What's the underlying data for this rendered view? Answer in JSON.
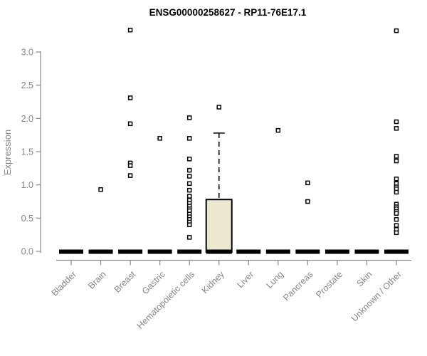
{
  "chart_data": {
    "type": "boxplot",
    "title": "ENSG00000258627 - RP11-76E17.1",
    "ylabel": "Expression",
    "xlabel": "",
    "yticks": [
      0.0,
      0.5,
      1.0,
      1.5,
      2.0,
      2.5,
      3.0
    ],
    "ylim": [
      0,
      3.4
    ],
    "grid": false,
    "legend": "none",
    "marker": "open-square",
    "categories": [
      "Bladder",
      "Brain",
      "Breast",
      "Gastric",
      "Hematopoietic cells",
      "Kidney",
      "Liver",
      "Lung",
      "Pancreas",
      "Prostate",
      "Skin",
      "Unknown / Other"
    ],
    "boxes": [
      {
        "label": "Bladder",
        "q1": 0,
        "median": 0,
        "q3": 0,
        "whisker_low": 0,
        "whisker_high": 0,
        "outliers": []
      },
      {
        "label": "Brain",
        "q1": 0,
        "median": 0,
        "q3": 0,
        "whisker_low": 0,
        "whisker_high": 0,
        "outliers": [
          0.93
        ]
      },
      {
        "label": "Breast",
        "q1": 0,
        "median": 0,
        "q3": 0,
        "whisker_low": 0,
        "whisker_high": 0,
        "outliers": [
          3.33,
          2.31,
          1.92,
          1.33,
          1.29,
          1.14
        ]
      },
      {
        "label": "Gastric",
        "q1": 0,
        "median": 0,
        "q3": 0,
        "whisker_low": 0,
        "whisker_high": 0,
        "outliers": [
          1.7
        ]
      },
      {
        "label": "Hematopoietic cells",
        "q1": 0,
        "median": 0,
        "q3": 0,
        "whisker_low": 0,
        "whisker_high": 0,
        "outliers": [
          2.01,
          1.7,
          1.39,
          1.22,
          1.13,
          1.02,
          0.92,
          0.83,
          0.77,
          0.72,
          0.68,
          0.64,
          0.61,
          0.56,
          0.52,
          0.48,
          0.44,
          0.4,
          0.21
        ]
      },
      {
        "label": "Kidney",
        "q1": 0,
        "median": 0,
        "q3": 0.78,
        "whisker_low": 0,
        "whisker_high": 1.78,
        "outliers": [
          2.17
        ]
      },
      {
        "label": "Liver",
        "q1": 0,
        "median": 0,
        "q3": 0,
        "whisker_low": 0,
        "whisker_high": 0,
        "outliers": []
      },
      {
        "label": "Lung",
        "q1": 0,
        "median": 0,
        "q3": 0,
        "whisker_low": 0,
        "whisker_high": 0,
        "outliers": [
          1.82
        ]
      },
      {
        "label": "Pancreas",
        "q1": 0,
        "median": 0,
        "q3": 0,
        "whisker_low": 0,
        "whisker_high": 0,
        "outliers": [
          1.03,
          0.75
        ]
      },
      {
        "label": "Prostate",
        "q1": 0,
        "median": 0,
        "q3": 0,
        "whisker_low": 0,
        "whisker_high": 0,
        "outliers": []
      },
      {
        "label": "Skin",
        "q1": 0,
        "median": 0,
        "q3": 0,
        "whisker_low": 0,
        "whisker_high": 0,
        "outliers": []
      },
      {
        "label": "Unknown / Other",
        "q1": 0,
        "median": 0,
        "q3": 0,
        "whisker_low": 0,
        "whisker_high": 0,
        "outliers": [
          3.32,
          1.95,
          1.85,
          1.43,
          1.36,
          1.09,
          1.02,
          0.97,
          0.94,
          0.89,
          0.71,
          0.67,
          0.64,
          0.6,
          0.57,
          0.48,
          0.39,
          0.33,
          0.28
        ]
      }
    ],
    "colors": {
      "box_fill": "#ece8cf",
      "box_stroke": "#000000",
      "median": "#000000",
      "outlier_stroke": "#000000",
      "outlier_fill": "#ffffff",
      "axis": "#8a8a8a",
      "tick_text": "#868686",
      "title_text": "#000000",
      "background": "#ffffff"
    }
  }
}
